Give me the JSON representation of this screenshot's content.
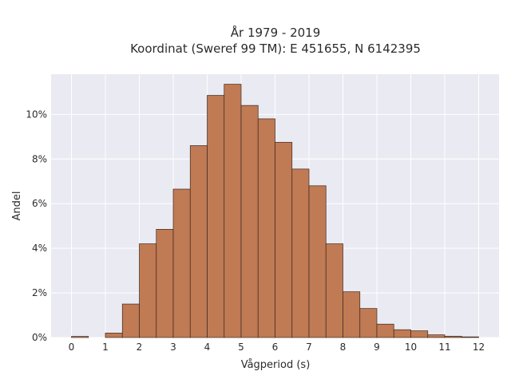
{
  "chart_data": {
    "type": "bar",
    "title_line1": "År 1979 - 2019",
    "title_line2": "Koordinat (Sweref 99 TM): E 451655, N 6142395",
    "xlabel": "Vågperiod (s)",
    "ylabel": "Andel",
    "xlim": [
      -0.6,
      12.6
    ],
    "ylim": [
      0,
      11.8
    ],
    "x_ticks": [
      0,
      1,
      2,
      3,
      4,
      5,
      6,
      7,
      8,
      9,
      10,
      11,
      12
    ],
    "y_ticks": [
      0,
      2,
      4,
      6,
      8,
      10
    ],
    "y_tick_labels": [
      "0%",
      "2%",
      "4%",
      "6%",
      "8%",
      "10%"
    ],
    "bin_width": 0.5,
    "bins": [
      {
        "start": 0.0,
        "value": 0.05
      },
      {
        "start": 0.5,
        "value": 0.0
      },
      {
        "start": 1.0,
        "value": 0.2
      },
      {
        "start": 1.5,
        "value": 1.5
      },
      {
        "start": 2.0,
        "value": 4.2
      },
      {
        "start": 2.5,
        "value": 4.85
      },
      {
        "start": 3.0,
        "value": 6.65
      },
      {
        "start": 3.5,
        "value": 8.6
      },
      {
        "start": 4.0,
        "value": 10.85
      },
      {
        "start": 4.5,
        "value": 11.35
      },
      {
        "start": 5.0,
        "value": 10.4
      },
      {
        "start": 5.5,
        "value": 9.8
      },
      {
        "start": 6.0,
        "value": 8.75
      },
      {
        "start": 6.5,
        "value": 7.55
      },
      {
        "start": 7.0,
        "value": 6.8
      },
      {
        "start": 7.5,
        "value": 4.2
      },
      {
        "start": 8.0,
        "value": 2.05
      },
      {
        "start": 8.5,
        "value": 1.3
      },
      {
        "start": 9.0,
        "value": 0.6
      },
      {
        "start": 9.5,
        "value": 0.35
      },
      {
        "start": 10.0,
        "value": 0.3
      },
      {
        "start": 10.5,
        "value": 0.12
      },
      {
        "start": 11.0,
        "value": 0.06
      },
      {
        "start": 11.5,
        "value": 0.03
      }
    ],
    "grid": true,
    "legend": "none",
    "colors": {
      "bar": "#c07a54",
      "bar_edge": "#3b2a20",
      "plot_background": "#eaeaf2",
      "grid": "#ffffff"
    }
  }
}
